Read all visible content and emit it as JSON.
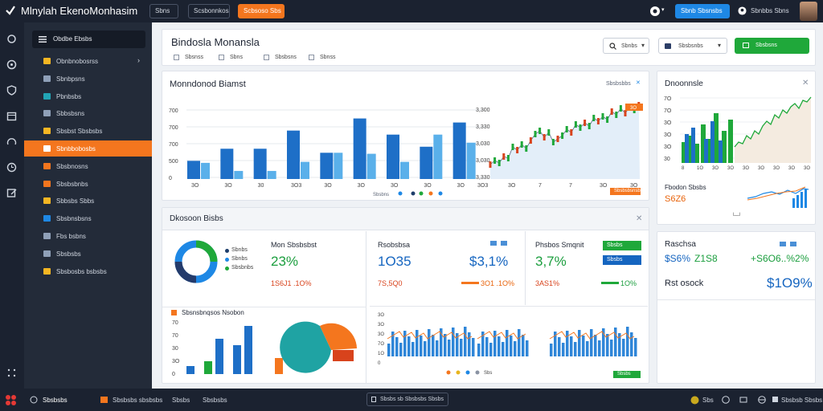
{
  "app": {
    "title": "Mlnylah EkenoMonhasim"
  },
  "topbar": {
    "buttons": [
      "Sbns",
      "Scsbonnkoss",
      "Scbsoso Sbs"
    ],
    "right_button": "Sbnb Sbsnsbs",
    "user_label": "Sbnbbs Sbns"
  },
  "sidebar": {
    "header": "Obdbe Ebsbs",
    "items": [
      {
        "label": "Obnbnobosrss",
        "color": "#f5b623"
      },
      {
        "label": "Sbnbpsns",
        "color": "#8fa0b8"
      },
      {
        "label": "Pbnbsbs",
        "color": "#22a5b5"
      },
      {
        "label": "Sbbsbsns",
        "color": "#8fa0b8"
      },
      {
        "label": "Sbsbst Sbsbsbs",
        "color": "#f5b623"
      },
      {
        "label": "Sbnbbobosbs",
        "color": "#ffffff"
      },
      {
        "label": "Sbsbnosns",
        "color": "#f4761e"
      },
      {
        "label": "Sbsbsbnbs",
        "color": "#f4761e"
      },
      {
        "label": "Sbbsbs Sbbs",
        "color": "#f5b623"
      },
      {
        "label": "Sbsbnsbsns",
        "color": "#1e88e5"
      },
      {
        "label": "Fbs bsbns",
        "color": "#8fa0b8"
      },
      {
        "label": "Sbsbsbs",
        "color": "#8fa0b8"
      },
      {
        "label": "Sbsbosbs bsbsbs",
        "color": "#f5b623"
      }
    ],
    "active_index": 5
  },
  "header_card": {
    "title": "Bindosla Monansla",
    "tabs": [
      "Sbsnss",
      "Sbns",
      "Sbsbsns",
      "Sbnss"
    ],
    "search_label": "Sbnbs",
    "select_label": "Sbsbsnbs",
    "action_label": "Sbsbsns"
  },
  "main_chart": {
    "title": "Monndonod Biamst",
    "legend_label": "Sbsbsbbs",
    "yticks": [
      "700",
      "700",
      "700",
      "500",
      "0"
    ],
    "xticks": [
      "3O",
      "3O",
      "30",
      "3O3",
      "3O",
      "3O",
      "3O",
      "3O",
      "3O"
    ],
    "right_yticks": [
      "3,300",
      "3,330",
      "3,030",
      "3,030",
      "3,330"
    ],
    "right_xticks": [
      "3O3",
      "3O",
      "7",
      "7",
      "3O",
      "3O"
    ],
    "price_tag": "3O",
    "legend_row": "Sbsbns",
    "action_pill": "Sbsbsbsnsbs"
  },
  "chart_data": {
    "type": "bar",
    "categories": [
      "3O",
      "3O",
      "30",
      "3O3",
      "3O",
      "3O",
      "3O",
      "3O",
      "3O"
    ],
    "series": [
      {
        "values": [
          18,
          30,
          30,
          48,
          26,
          60,
          44,
          32,
          56
        ]
      },
      {
        "values": [
          16,
          8,
          8,
          17,
          26,
          25,
          17,
          44,
          36
        ]
      }
    ],
    "ylim": [
      0,
      70
    ]
  },
  "side_chart": {
    "title": "Dnoonnsle",
    "yticks": [
      "7O",
      "7O",
      "3O",
      "3O",
      "3O",
      "30"
    ],
    "xticks": [
      "8",
      "1O",
      "3O",
      "3O",
      "3O",
      "3O",
      "3O",
      "3O",
      "3O"
    ],
    "sub_title": "Fbodon Sbsbs",
    "sub_value": "S6Z6"
  },
  "mid_card": {
    "title": "Dkosoon Bisbs",
    "legend": [
      "Sbnbs",
      "Sbnbs",
      "Sbsbnbs"
    ],
    "m1_label": "Mon Sbsbsbst",
    "m1_value": "23%",
    "m1_sub": "1S6J1 .1O%",
    "m2_label": "Rsobsbsa",
    "m2_value": "1O35",
    "m2_right": "$3,1%",
    "m2_sub": "7S,5Q0",
    "m2_sub2": "3O1 .1O%",
    "m3_label": "Phsbos Smqnit",
    "m3_value": "3,7%",
    "m3_sub": "3AS1%",
    "m3_sub2": "1O%",
    "m3_pill1": "Sbsbs",
    "m3_pill2": "Sbsbs",
    "bar_title": "Sbsnsbnqsos Nsobon",
    "bar_yticks": [
      "70",
      "70",
      "30",
      "3O",
      "0"
    ],
    "line_yticks": [
      "3O",
      "3O",
      "3O",
      "7O",
      "1O",
      "0"
    ],
    "line_legend": "Sbs",
    "line_pill": "Sbsbs"
  },
  "right_card": {
    "title": "Raschsa",
    "v1": "$S6%",
    "v2": "Z1S8",
    "v3": "+S6O6..%2%",
    "label": "Rst osock",
    "v4": "$1O9%"
  },
  "bottombar": {
    "items": [
      "Sbsbsbs",
      "Sbsbsbs sbsbsbs",
      "Sbsbs",
      "Sbsbsbs",
      "Sbsbs sb Sbsbsbs Sbsbs",
      "Sbs",
      "Sbsbsb Sbsbs"
    ]
  },
  "colors": {
    "accent": "#f4761e",
    "primary": "#1e88e5",
    "green": "#1b9e3e",
    "dark": "#1b2230"
  }
}
